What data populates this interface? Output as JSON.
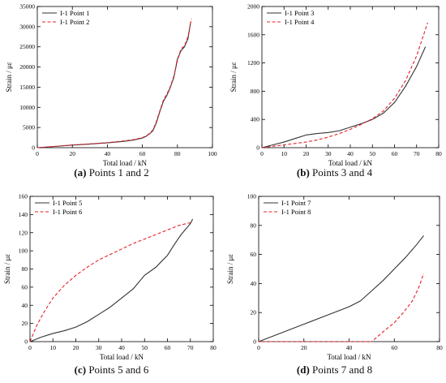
{
  "chart_data": [
    {
      "type": "line",
      "panel_label": "(a)",
      "caption": "Points 1 and 2",
      "xlabel": "Total load / kN",
      "ylabel": "Strain / με",
      "xlim": [
        0,
        100
      ],
      "ylim": [
        0,
        35000
      ],
      "xticks": [
        0,
        20,
        40,
        60,
        80,
        100
      ],
      "yticks": [
        0,
        5000,
        10000,
        15000,
        20000,
        25000,
        30000,
        35000
      ],
      "legend_position": "top-left",
      "grid": false,
      "series": [
        {
          "name": "I-1 Point 1",
          "color": "#333333",
          "dash": "solid",
          "x": [
            0,
            10,
            20,
            30,
            40,
            50,
            55,
            60,
            62,
            64,
            66,
            68,
            70,
            72,
            74,
            76,
            78,
            80,
            82,
            84,
            86,
            87.5
          ],
          "y": [
            0,
            300,
            650,
            900,
            1200,
            1600,
            1900,
            2400,
            2800,
            3400,
            4200,
            6200,
            9000,
            11500,
            13000,
            15000,
            17500,
            22000,
            24000,
            25000,
            27000,
            31000
          ]
        },
        {
          "name": "I-1 Point 2",
          "color": "#e8202a",
          "dash": "dashed",
          "x": [
            0,
            10,
            20,
            30,
            40,
            50,
            55,
            60,
            62,
            64,
            66,
            68,
            70,
            72,
            74,
            76,
            78,
            80,
            82,
            84,
            86,
            88
          ],
          "y": [
            0,
            320,
            680,
            950,
            1250,
            1700,
            2000,
            2500,
            2900,
            3500,
            4400,
            6500,
            9200,
            11800,
            13300,
            15200,
            17800,
            21500,
            24500,
            25200,
            27500,
            32000
          ]
        }
      ]
    },
    {
      "type": "line",
      "panel_label": "(b)",
      "caption": "Points 3 and 4",
      "xlabel": "Total load / kN",
      "ylabel": "Strain / με",
      "xlim": [
        0,
        80
      ],
      "ylim": [
        0,
        2000
      ],
      "xticks": [
        0,
        10,
        20,
        30,
        40,
        50,
        60,
        70,
        80
      ],
      "yticks": [
        0,
        400,
        800,
        1200,
        1600,
        2000
      ],
      "legend_position": "top-left",
      "grid": false,
      "series": [
        {
          "name": "I-1 Point 3",
          "color": "#333333",
          "dash": "solid",
          "x": [
            0,
            5,
            10,
            15,
            20,
            25,
            30,
            35,
            40,
            45,
            50,
            55,
            60,
            65,
            70,
            74
          ],
          "y": [
            0,
            40,
            80,
            130,
            180,
            200,
            215,
            240,
            290,
            340,
            400,
            490,
            640,
            870,
            1150,
            1430
          ]
        },
        {
          "name": "I-1 Point 4",
          "color": "#e8202a",
          "dash": "dashed",
          "x": [
            0,
            5,
            10,
            15,
            20,
            25,
            30,
            35,
            40,
            45,
            50,
            55,
            60,
            65,
            70,
            75
          ],
          "y": [
            0,
            20,
            40,
            60,
            80,
            110,
            150,
            200,
            260,
            330,
            410,
            520,
            700,
            950,
            1300,
            1770
          ]
        }
      ]
    },
    {
      "type": "line",
      "panel_label": "(c)",
      "caption": "Points 5 and 6",
      "xlabel": "Total load / kN",
      "ylabel": "Strain / με",
      "xlim": [
        0,
        80
      ],
      "ylim": [
        0,
        160
      ],
      "xticks": [
        0,
        10,
        20,
        30,
        40,
        50,
        60,
        70,
        80
      ],
      "yticks": [
        0,
        20,
        40,
        60,
        80,
        100,
        120,
        140,
        160
      ],
      "legend_position": "top-left",
      "grid": false,
      "series": [
        {
          "name": "I-1 Point 5",
          "color": "#333333",
          "dash": "solid",
          "x": [
            0,
            5,
            10,
            15,
            20,
            25,
            30,
            35,
            40,
            45,
            50,
            55,
            58,
            60,
            63,
            66,
            70,
            71
          ],
          "y": [
            0,
            5,
            9,
            12,
            16,
            22,
            30,
            38,
            48,
            58,
            73,
            82,
            90,
            95,
            107,
            118,
            130,
            135
          ]
        },
        {
          "name": "I-1 Point 6",
          "color": "#e8202a",
          "dash": "dashed",
          "x": [
            0,
            3,
            6,
            10,
            15,
            20,
            25,
            30,
            35,
            40,
            45,
            50,
            55,
            60,
            65,
            70
          ],
          "y": [
            0,
            18,
            32,
            48,
            62,
            73,
            82,
            90,
            96,
            102,
            108,
            113,
            118,
            123,
            128,
            131
          ]
        }
      ]
    },
    {
      "type": "line",
      "panel_label": "(d)",
      "caption": "Points 7 and 8",
      "xlabel": "Total load / kN",
      "ylabel": "Strain / με",
      "xlim": [
        0,
        80
      ],
      "ylim": [
        0,
        100
      ],
      "xticks": [
        0,
        20,
        40,
        60,
        80
      ],
      "yticks": [
        0,
        20,
        40,
        60,
        80,
        100
      ],
      "legend_position": "top-left",
      "grid": false,
      "series": [
        {
          "name": "I-1 Point 7",
          "color": "#333333",
          "dash": "solid",
          "x": [
            0,
            10,
            20,
            30,
            40,
            45,
            50,
            55,
            60,
            65,
            70,
            73
          ],
          "y": [
            0,
            6,
            12,
            18,
            24,
            28,
            35,
            42,
            50,
            58,
            67,
            73
          ]
        },
        {
          "name": "I-1 Point 8",
          "color": "#e8202a",
          "dash": "dashed",
          "x": [
            0,
            20,
            40,
            50,
            53,
            56,
            60,
            64,
            68,
            71,
            73
          ],
          "y": [
            0,
            0,
            0,
            0,
            4,
            8,
            13,
            20,
            28,
            38,
            47
          ]
        }
      ]
    }
  ]
}
